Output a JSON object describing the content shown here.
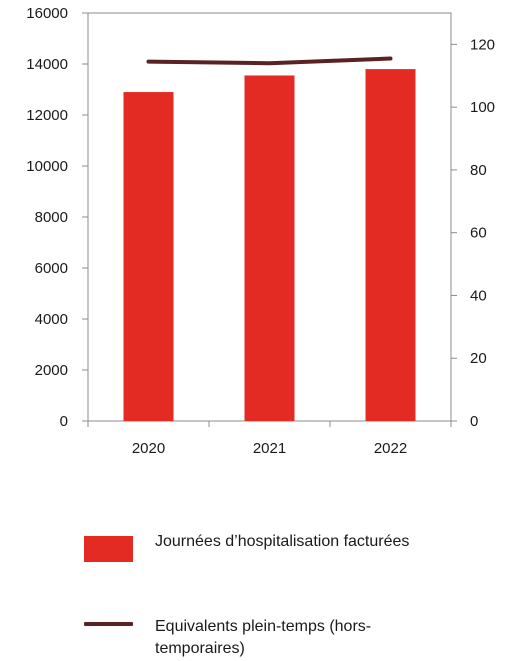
{
  "chart_data": {
    "type": "bar",
    "categories": [
      "2020",
      "2021",
      "2022"
    ],
    "series": [
      {
        "name": "Journées d’hospitalisation facturées",
        "type": "bar",
        "axis": "left",
        "values": [
          12900,
          13550,
          13800
        ],
        "color": "#e32b24"
      },
      {
        "name": "Equivalents plein-temps (hors-temporaires)",
        "type": "line",
        "axis": "right",
        "values": [
          114.5,
          114,
          115.5
        ],
        "color": "#5a2222"
      }
    ],
    "y_left": {
      "min": 0,
      "max": 16000,
      "ticks": [
        0,
        2000,
        4000,
        6000,
        8000,
        10000,
        12000,
        14000,
        16000
      ]
    },
    "y_right": {
      "min": 0,
      "max": 130,
      "ticks": [
        0,
        20,
        40,
        60,
        80,
        100,
        120
      ]
    },
    "grid": false,
    "legend_position": "bottom"
  },
  "legend": {
    "bar_label": "Journées d’hospitalisation facturées",
    "line_label": "Equivalents plein-temps (hors-temporaires)"
  }
}
